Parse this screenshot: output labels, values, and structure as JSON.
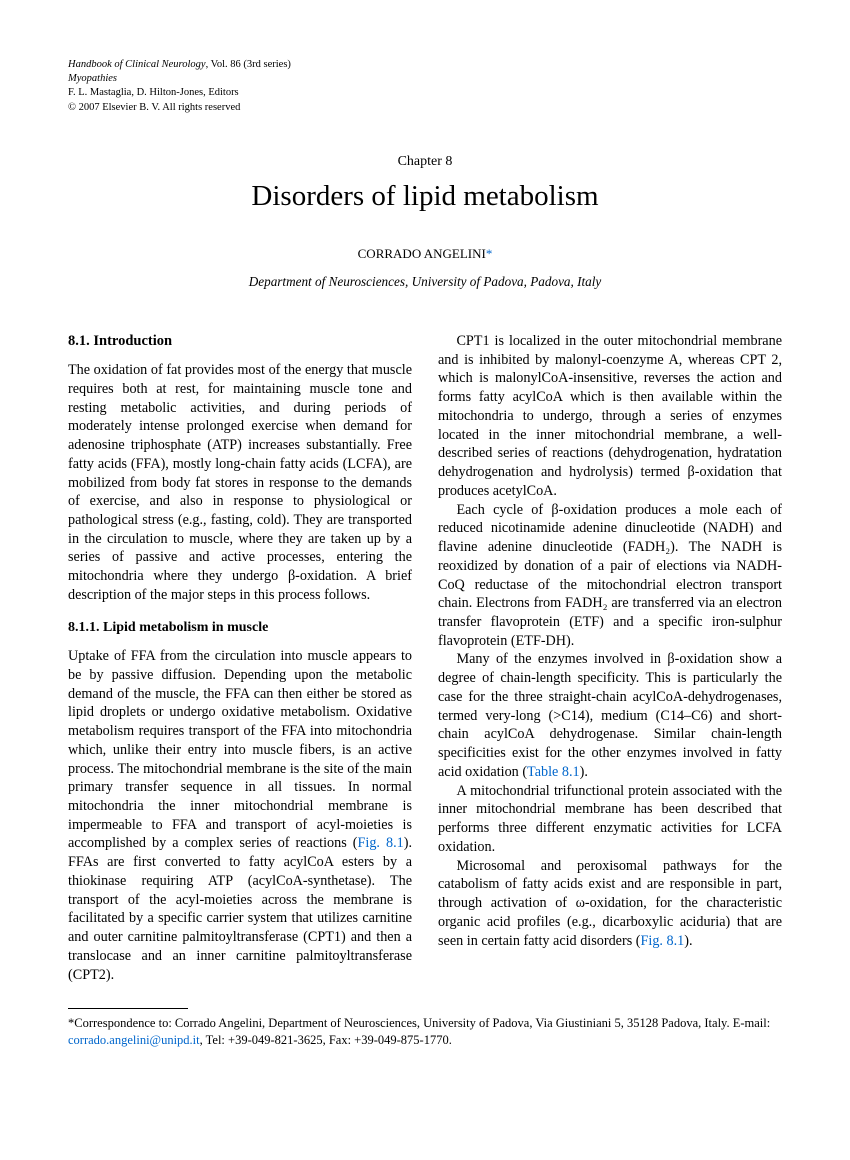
{
  "meta": {
    "line1_prefix": "Handbook of Clinical Neurology",
    "line1_suffix": ", Vol. 86 (3rd series)",
    "line2": "Myopathies",
    "line3": "F. L. Mastaglia, D. Hilton-Jones, Editors",
    "line4": "© 2007 Elsevier B. V. All rights reserved"
  },
  "chapter_label": "Chapter 8",
  "title": "Disorders of lipid metabolism",
  "author": "CORRADO ANGELINI",
  "author_marker": "*",
  "affiliation": "Department of Neurosciences, University of Padova, Padova, Italy",
  "sections": {
    "s81_heading": "8.1. Introduction",
    "s81_p1": "The oxidation of fat provides most of the energy that muscle requires both at rest, for maintaining muscle tone and resting metabolic activities, and during periods of moderately intense prolonged exercise when demand for adenosine triphosphate (ATP) increases substantially. Free fatty acids (FFA), mostly long-chain fatty acids (LCFA), are mobilized from body fat stores in response to the demands of exercise, and also in response to physiological or pathological stress (e.g., fasting, cold). They are transported in the circulation to muscle, where they are taken up by a series of passive and active processes, entering the mitochondria where they undergo β-oxidation. A brief description of the major steps in this process follows.",
    "s811_heading": "8.1.1. Lipid metabolism in muscle",
    "s811_p1a": "Uptake of FFA from the circulation into muscle appears to be by passive diffusion. Depending upon the metabolic demand of the muscle, the FFA can then either be stored as lipid droplets or undergo oxidative metabolism. Oxidative metabolism requires transport of the FFA into mitochondria which, unlike their entry into muscle fibers, is an active process. The mitochondrial membrane is the site of the main primary transfer sequence in all tissues. In normal mitochondria the inner mitochondrial membrane is impermeable to FFA and transport of acyl-moieties is accomplished by a complex series of reactions (",
    "s811_fig1": "Fig. 8.1",
    "s811_p1b": "). FFAs are first converted to fatty acylCoA esters by a thiokinase requiring ATP (acylCoA-synthetase). The transport of the acyl-moieties across the membrane is facilitated by a specific carrier system that utilizes carnitine and outer carnitine palmitoyltransferase (CPT1) and then a translocase and an inner carnitine palmitoyltransferase (CPT2).",
    "s811_p2": "CPT1 is localized in the outer mitochondrial membrane and is inhibited by malonyl-coenzyme A, whereas CPT 2, which is malonylCoA-insensitive, reverses the action and forms fatty acylCoA which is then available within the mitochondria to undergo, through a series of enzymes located in the inner mitochondrial membrane, a well-described series of reactions (dehydrogenation, hydratation dehydrogenation and hydrolysis) termed β-oxidation that produces acetylCoA.",
    "s811_p3": "Each cycle of β-oxidation produces a mole each of reduced nicotinamide adenine dinucleotide (NADH) and flavine adenine dinucleotide (FADH₂). The NADH is reoxidized by donation of a pair of elections via NADH-CoQ reductase of the mitochondrial electron transport chain. Electrons from FADH₂ are transferred via an electron transfer flavoprotein (ETF) and a specific iron-sulphur flavoprotein (ETF-DH).",
    "s811_p4a": "Many of the enzymes involved in β-oxidation show a degree of chain-length specificity. This is particularly the case for the three straight-chain acylCoA-dehydrogenases, termed very-long (>C14), medium (C14–C6) and short-chain acylCoA dehydrogenase. Similar chain-length specificities exist for the other enzymes involved in fatty acid oxidation (",
    "s811_table1": "Table 8.1",
    "s811_p4b": ").",
    "s811_p5": "A mitochondrial trifunctional protein associated with the inner mitochondrial membrane has been described that performs three different enzymatic activities for LCFA oxidation.",
    "s811_p6a": "Microsomal and peroxisomal pathways for the catabolism of fatty acids exist and are responsible in part, through activation of ω-oxidation, for the characteristic organic acid profiles (e.g., dicarboxylic aciduria) that are seen in certain fatty acid disorders (",
    "s811_fig1b": "Fig. 8.1",
    "s811_p6b": ")."
  },
  "footnote": {
    "prefix": "*Correspondence to: Corrado Angelini, Department of Neurosciences, University of Padova, Via Giustiniani 5, 35128 Padova, Italy. E-mail: ",
    "email": "corrado.angelini@unipd.it",
    "suffix": ", Tel: +39-049-821-3625, Fax: +39-049-875-1770."
  }
}
